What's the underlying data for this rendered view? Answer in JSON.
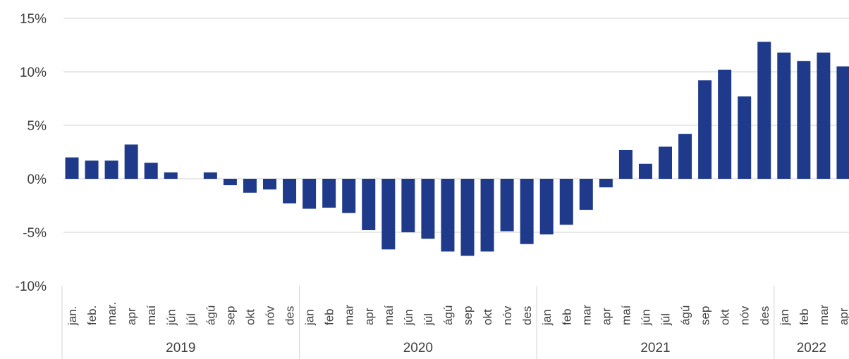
{
  "chart_data": {
    "type": "bar",
    "title": "",
    "xlabel": "",
    "ylabel": "",
    "ylim": [
      -10,
      15
    ],
    "y_ticks": [
      "15%",
      "10%",
      "5%",
      "0%",
      "-5%",
      "-10%"
    ],
    "y_tick_values": [
      15,
      10,
      5,
      0,
      -5,
      -10
    ],
    "grid": "horizontal",
    "bar_color": "#1f3a8a",
    "years": [
      {
        "label": "2019",
        "start": 0,
        "count": 12
      },
      {
        "label": "2020",
        "start": 12,
        "count": 12
      },
      {
        "label": "2021",
        "start": 24,
        "count": 12
      },
      {
        "label": "2022",
        "start": 36,
        "count": 4
      }
    ],
    "categories": [
      "jan.",
      "feb.",
      "mar.",
      "apr",
      "maí",
      "jún",
      "júl",
      "ágú",
      "sep",
      "okt",
      "nóv",
      "des",
      "jan",
      "feb",
      "mar",
      "apr",
      "maí",
      "jún",
      "júl",
      "ágú",
      "sep",
      "okt",
      "nóv",
      "des",
      "jan",
      "feb",
      "mar",
      "apr",
      "maí",
      "jún",
      "júl",
      "ágú",
      "sep",
      "okt",
      "nóv",
      "des",
      "jan",
      "feb",
      "mar",
      "apr"
    ],
    "values": [
      2.0,
      1.7,
      1.7,
      3.2,
      1.5,
      0.6,
      0.0,
      0.6,
      -0.6,
      -1.3,
      -1.0,
      -2.3,
      -2.8,
      -2.7,
      -3.2,
      -4.8,
      -6.6,
      -5.0,
      -5.6,
      -6.8,
      -7.2,
      -6.8,
      -4.9,
      -6.1,
      -5.2,
      -4.3,
      -2.9,
      -0.8,
      2.7,
      1.4,
      3.0,
      4.2,
      9.2,
      10.2,
      7.7,
      12.8,
      11.8,
      11.0,
      11.8,
      10.5
    ]
  }
}
